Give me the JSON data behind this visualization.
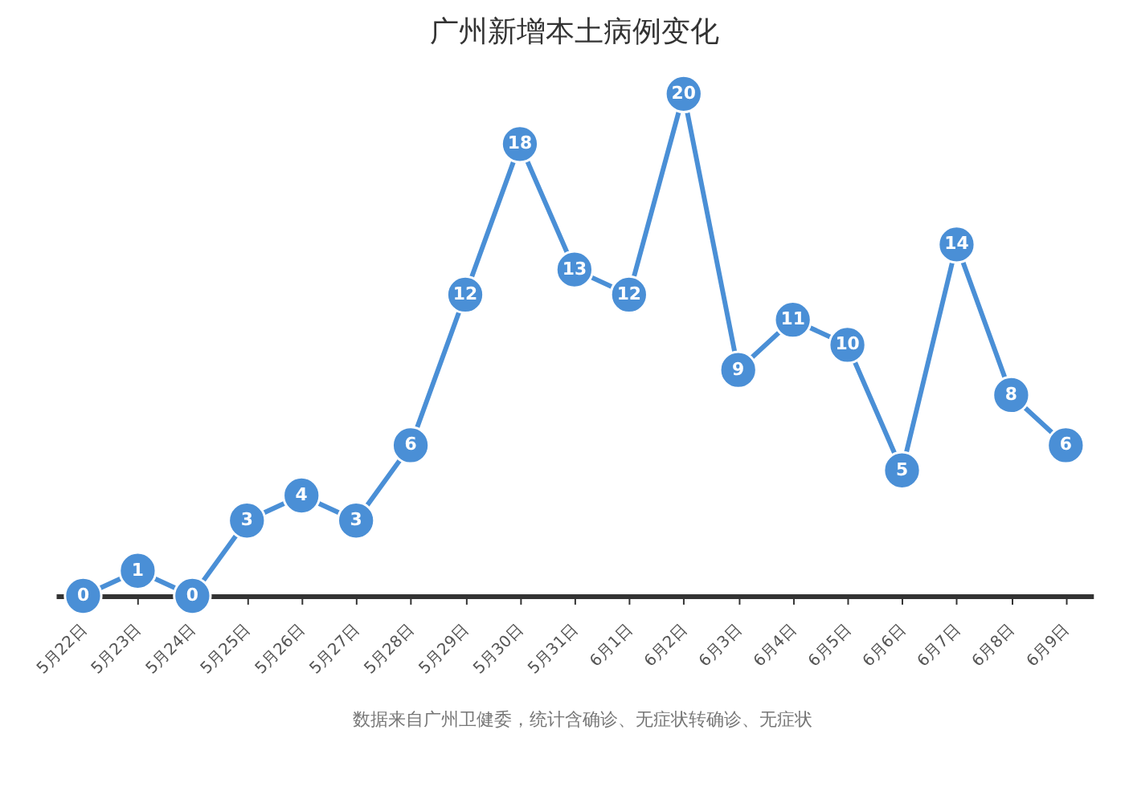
{
  "chart_data": {
    "type": "line",
    "title": "广州新增本土病例变化",
    "categories": [
      "5月22日",
      "5月23日",
      "5月24日",
      "5月25日",
      "5月26日",
      "5月27日",
      "5月28日",
      "5月29日",
      "5月30日",
      "5月31日",
      "6月1日",
      "6月2日",
      "6月3日",
      "6月4日",
      "6月5日",
      "6月6日",
      "6月7日",
      "6月8日",
      "6月9日"
    ],
    "values": [
      0,
      1,
      0,
      3,
      4,
      3,
      6,
      12,
      18,
      13,
      12,
      20,
      9,
      11,
      10,
      5,
      14,
      8,
      6
    ],
    "color": "#4a8fd6",
    "marker": "circle",
    "data_labels": true,
    "grid": false,
    "annotations": [
      "数据来自广州卫健委，统计含确诊、无症状转确诊、无症状"
    ]
  }
}
